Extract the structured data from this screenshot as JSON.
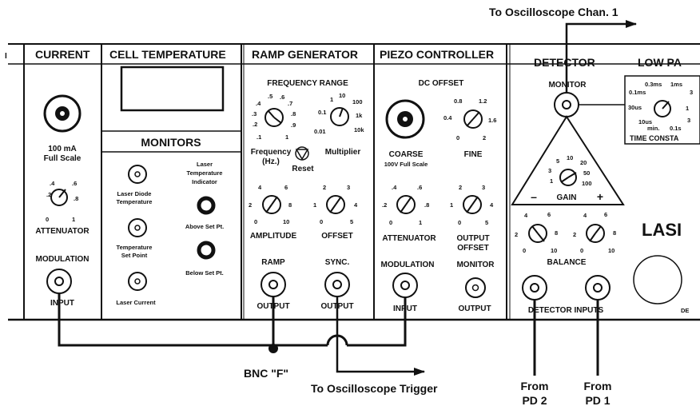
{
  "annotations": {
    "osc_chan1": "To Oscilloscope Chan. 1",
    "osc_trigger": "To Oscilloscope Trigger",
    "bnc_f": "BNC \"F\"",
    "from_pd2_a": "From",
    "from_pd2_b": "PD 2",
    "from_pd1_a": "From",
    "from_pd1_b": "PD 1"
  },
  "current": {
    "title": "CURRENT",
    "scale_a": "100 mA",
    "scale_b": "Full Scale",
    "attenuator": "ATTENUATOR",
    "modulation": "MODULATION",
    "input": "INPUT",
    "ticks": [
      ".2",
      ".4",
      ".6",
      ".8",
      "0",
      "1"
    ]
  },
  "cell": {
    "title": "CELL TEMPERATURE",
    "monitors": "MONITORS",
    "ld_temp_a": "Laser Diode",
    "ld_temp_b": "Temperature",
    "set_a": "Temperature",
    "set_b": "Set Point",
    "laser_current": "Laser Current",
    "indicator_a": "Laser",
    "indicator_b": "Temperature",
    "indicator_c": "Indicator",
    "above": "Above Set Pt.",
    "below": "Below Set Pt."
  },
  "ramp": {
    "title": "RAMP GENERATOR",
    "freq_range": "FREQUENCY RANGE",
    "freq_a": "Frequency",
    "freq_b": "(Hz.)",
    "multiplier": "Multiplier",
    "reset": "Reset",
    "amplitude": "AMPLITUDE",
    "offset": "OFFSET",
    "ramp": "RAMP",
    "sync": "SYNC.",
    "output1": "OUTPUT",
    "output2": "OUTPUT",
    "freq_ticks": [
      ".1",
      ".2",
      ".3",
      ".4",
      ".5",
      ".6",
      ".7",
      ".8",
      ".9",
      "1"
    ],
    "mult_ticks": [
      "0.01",
      "0.1",
      "1",
      "10",
      "100",
      "1k",
      "10k"
    ],
    "amp_ticks": [
      "0",
      "2",
      "4",
      "6",
      "8",
      "10"
    ],
    "off_ticks": [
      "0",
      "1",
      "2",
      "3",
      "4",
      "5"
    ]
  },
  "piezo": {
    "title": "PIEZO CONTROLLER",
    "dc_offset": "DC OFFSET",
    "coarse": "COARSE",
    "coarse_scale": "100V Full Scale",
    "fine": "FINE",
    "attenuator": "ATTENUATOR",
    "output_offset_a": "OUTPUT",
    "output_offset_b": "OFFSET",
    "modulation": "MODULATION",
    "monitor": "MONITOR",
    "input": "INPUT",
    "output": "OUTPUT",
    "fine_ticks": [
      "0",
      "0.4",
      "0.8",
      "1.2",
      "1.6",
      "2"
    ],
    "att_ticks": [
      "0",
      ".2",
      ".4",
      ".6",
      ".8",
      "1"
    ],
    "oo_ticks": [
      "0",
      "1",
      "2",
      "3",
      "4",
      "5"
    ]
  },
  "detector": {
    "title": "DETECTOR",
    "monitor": "MONITOR",
    "gain": "GAIN",
    "minus": "–",
    "plus": "+",
    "balance": "BALANCE",
    "inputs": "DETECTOR INPUTS",
    "gain_ticks": [
      "1",
      "3",
      "5",
      "10",
      "20",
      "50",
      "100"
    ],
    "bal_ticks": [
      "0",
      "2",
      "4",
      "6",
      "8",
      "10"
    ]
  },
  "lowpass": {
    "title": "LOW PA",
    "time_const": "TIME CONSTA",
    "tc_ticks": [
      "0.1ms",
      "0.3ms",
      "1ms",
      "3",
      "1",
      "3",
      "10us",
      "30us",
      "min.",
      "0.1s"
    ]
  },
  "laser_label": "LASI",
  "det_trunc": "DE",
  "edge_mark": "I"
}
